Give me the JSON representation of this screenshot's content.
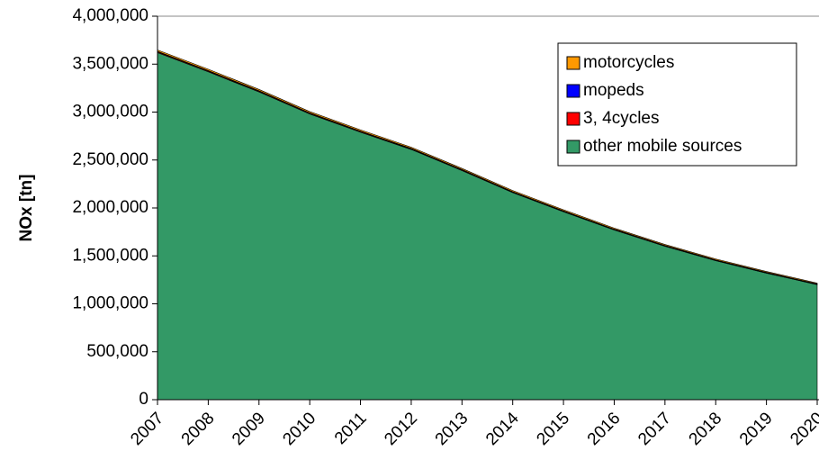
{
  "chart_data": {
    "type": "stacked_area",
    "y_label": "NOx [tn]",
    "categories": [
      "2007",
      "2008",
      "2009",
      "2010",
      "2011",
      "2012",
      "2013",
      "2014",
      "2015",
      "2016",
      "2017",
      "2018",
      "2019",
      "2020"
    ],
    "series": [
      {
        "name": "motorcycles",
        "color": "#ff9900",
        "values": [
          15000,
          14500,
          14000,
          13500,
          13000,
          12500,
          12000,
          11500,
          11000,
          10500,
          10000,
          9500,
          9000,
          8500
        ]
      },
      {
        "name": "mopeds",
        "color": "#0000ff",
        "values": [
          5000,
          5000,
          4800,
          4600,
          4400,
          4200,
          4000,
          3800,
          3600,
          3400,
          3200,
          3000,
          2800,
          2600
        ]
      },
      {
        "name": "3, 4cycles",
        "color": "#ff0000",
        "values": [
          8000,
          7800,
          7600,
          7400,
          7200,
          7000,
          6800,
          6600,
          6400,
          6200,
          6000,
          5800,
          5600,
          5400
        ]
      },
      {
        "name": "other mobile sources",
        "color": "#339966",
        "values": [
          3620000,
          3420000,
          3210000,
          2980000,
          2790000,
          2610000,
          2390000,
          2160000,
          1960000,
          1770000,
          1600000,
          1450000,
          1320000,
          1200000
        ]
      }
    ],
    "ylim": [
      0,
      4000000
    ],
    "yticks": [
      0,
      {
        "value": 500000,
        "label": "500,000"
      },
      {
        "value": 1000000,
        "label": "1,000,000"
      },
      {
        "value": 1500000,
        "label": "1,500,000"
      },
      {
        "value": 2000000,
        "label": "2,000,000"
      },
      {
        "value": 2500000,
        "label": "2,500,000"
      },
      {
        "value": 3000000,
        "label": "3,000,000"
      },
      {
        "value": 3500000,
        "label": "3,500,000"
      },
      {
        "value": 4000000,
        "label": "4,000,000"
      }
    ],
    "legend": "upper right"
  }
}
